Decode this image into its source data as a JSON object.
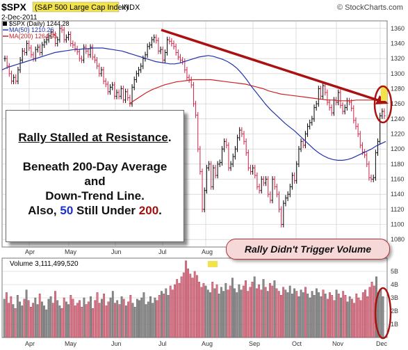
{
  "chart_data": {
    "type": "candlestick",
    "title": "$SPX",
    "title_detail": "(S&P 500 Large Cap Index)",
    "exchange": "INDX",
    "date": "2-Dec-2011",
    "source": "© StockCharts.com",
    "legend": [
      {
        "name": "$SPX (Daily) 1244.28",
        "color": "#000000"
      },
      {
        "name": "MA(50) 1210.26",
        "color": "#2233aa"
      },
      {
        "name": "MA(200) 1264.95",
        "color": "#cc2222"
      }
    ],
    "price_axis": {
      "ylim": [
        1070,
        1370
      ],
      "ticks": [
        1080,
        1100,
        1120,
        1140,
        1160,
        1180,
        1200,
        1220,
        1240,
        1260,
        1280,
        1300,
        1320,
        1340,
        1360
      ]
    },
    "volume_axis": {
      "label": "Volume 3,111,499,520",
      "ticks": [
        "1B",
        "2B",
        "3B",
        "4B",
        "5B"
      ],
      "ylim": [
        0,
        6
      ]
    },
    "x_labels": [
      "Apr",
      "May",
      "Jun",
      "Jul",
      "Aug",
      "Sep",
      "Oct",
      "Nov",
      "Dec"
    ],
    "close_series": [
      1320,
      1310,
      1300,
      1290,
      1295,
      1290,
      1305,
      1318,
      1330,
      1328,
      1340,
      1334,
      1325,
      1320,
      1332,
      1335,
      1328,
      1338,
      1342,
      1345,
      1350,
      1355,
      1352,
      1340,
      1345,
      1360,
      1358,
      1345,
      1348,
      1352,
      1340,
      1338,
      1333,
      1329,
      1320,
      1318,
      1335,
      1330,
      1325,
      1335,
      1322,
      1318,
      1310,
      1300,
      1305,
      1290,
      1286,
      1276,
      1282,
      1285,
      1270,
      1275,
      1270,
      1280,
      1265,
      1276,
      1268,
      1260,
      1282,
      1292,
      1300,
      1305,
      1310,
      1320,
      1325,
      1336,
      1338,
      1345,
      1348,
      1344,
      1330,
      1332,
      1318,
      1328,
      1345,
      1343,
      1340,
      1336,
      1328,
      1322,
      1318,
      1316,
      1305,
      1295,
      1292,
      1285,
      1260,
      1245,
      1200,
      1170,
      1120,
      1145,
      1175,
      1180,
      1150,
      1175,
      1165,
      1180,
      1182,
      1200,
      1210,
      1205,
      1175,
      1180,
      1190,
      1200,
      1215,
      1225,
      1220,
      1210,
      1195,
      1175,
      1170,
      1175,
      1165,
      1150,
      1145,
      1160,
      1155,
      1160,
      1140,
      1132,
      1160,
      1150,
      1140,
      1120,
      1100,
      1128,
      1135,
      1140,
      1150,
      1165,
      1158,
      1180,
      1200,
      1210,
      1205,
      1220,
      1230,
      1235,
      1240,
      1255,
      1260,
      1280,
      1270,
      1284,
      1275,
      1262,
      1255,
      1248,
      1265,
      1262,
      1275,
      1258,
      1250,
      1255,
      1264,
      1262,
      1254,
      1238,
      1230,
      1220,
      1205,
      1196,
      1192,
      1180,
      1162,
      1160,
      1162,
      1195,
      1210,
      1244,
      1250,
      1244
    ],
    "ma50": [
      1305,
      1308,
      1310,
      1312,
      1314,
      1316,
      1318,
      1320,
      1322,
      1324,
      1326,
      1328,
      1329,
      1330,
      1331,
      1332,
      1332,
      1333,
      1333,
      1334,
      1334,
      1334,
      1333,
      1332,
      1331,
      1330,
      1328,
      1326,
      1324,
      1322,
      1320,
      1318,
      1316,
      1315,
      1314,
      1313,
      1313,
      1314,
      1316,
      1318,
      1320,
      1322,
      1323,
      1324,
      1323,
      1321,
      1319,
      1316,
      1312,
      1307,
      1300,
      1292,
      1283,
      1275,
      1267,
      1259,
      1252,
      1246,
      1240,
      1234,
      1229,
      1224,
      1218,
      1212,
      1206,
      1200,
      1195,
      1191,
      1188,
      1186,
      1185,
      1185,
      1186,
      1188,
      1191,
      1194,
      1197,
      1200,
      1204,
      1207,
      1210
    ],
    "ma200": [
      1260,
      1265,
      1270,
      1275,
      1279,
      1282,
      1285,
      1287,
      1289,
      1290,
      1291,
      1292,
      1292,
      1292,
      1292,
      1291,
      1290,
      1289,
      1288,
      1287,
      1286,
      1284,
      1282,
      1280,
      1277,
      1275,
      1273,
      1272,
      1271,
      1270,
      1269,
      1268,
      1267,
      1266,
      1265,
      1265,
      1264,
      1264,
      1264,
      1265,
      1265,
      1265,
      1265,
      1265,
      1265
    ],
    "volume_series": [
      2.9,
      3.4,
      2.6,
      3.1,
      2.5,
      2.2,
      3.2,
      2.7,
      2.4,
      2.9,
      3.6,
      2.8,
      2.3,
      2.6,
      3.0,
      2.5,
      3.3,
      2.7,
      2.4,
      2.1,
      2.9,
      3.1,
      2.6,
      3.5,
      2.8,
      2.4,
      2.2,
      3.0,
      2.7,
      2.5,
      3.2,
      2.9,
      2.4,
      2.6,
      2.8,
      2.3,
      3.0,
      2.5,
      2.7,
      3.1,
      2.2,
      2.8,
      3.4,
      2.6,
      2.9,
      3.3,
      2.4,
      2.7,
      3.0,
      3.5,
      2.6,
      2.8,
      2.5,
      3.1,
      2.9,
      2.4,
      2.7,
      3.2,
      2.6,
      2.3,
      2.9,
      2.8,
      3.0,
      3.4,
      2.5,
      2.7,
      3.1,
      2.6,
      3.0,
      2.8,
      3.2,
      3.5,
      3.3,
      3.7,
      3.2,
      3.9,
      3.6,
      4.0,
      4.4,
      4.1,
      4.6,
      4.9,
      5.8,
      5.2,
      4.8,
      4.5,
      5.0,
      4.7,
      4.2,
      3.8,
      4.1,
      3.9,
      3.6,
      3.4,
      4.2,
      3.7,
      4.0,
      3.3,
      3.8,
      3.5,
      4.1,
      3.6,
      3.9,
      4.5,
      3.7,
      3.4,
      4.0,
      3.6,
      3.9,
      4.3,
      3.5,
      3.8,
      4.2,
      4.6,
      3.7,
      4.0,
      3.6,
      4.4,
      3.8,
      3.5,
      4.1,
      3.9,
      4.3,
      3.7,
      3.5,
      3.2,
      3.8,
      3.6,
      3.4,
      3.9,
      3.3,
      3.7,
      3.5,
      3.1,
      3.6,
      3.4,
      3.8,
      3.3,
      3.0,
      3.5,
      3.2,
      3.7,
      3.4,
      3.1,
      3.6,
      3.3,
      2.9,
      3.4,
      3.2,
      2.8,
      3.6,
      3.3,
      3.0,
      3.5,
      3.2,
      2.7,
      3.1,
      2.9,
      2.6,
      3.3,
      3.0,
      2.8,
      3.4,
      3.6,
      3.1,
      3.8,
      4.2,
      3.9,
      4.6,
      3.4,
      3.6,
      3.1
    ],
    "annotations": {
      "callout_title": "Rally Stalled at Resistance",
      "callout_period": ".",
      "callout_line2": "Beneath 200-Day Average",
      "callout_line3": "and",
      "callout_line4": "Down-Trend Line.",
      "callout_line5_pre": "Also, ",
      "callout_line5_a": "50",
      "callout_line5_mid": " Still Under ",
      "callout_line5_b": "200",
      "callout_line5_post": ".",
      "volume_callout": "Rally Didn't Trigger Volume"
    },
    "colors": {
      "up": "#000000",
      "down": "#cc2244",
      "ma50": "#2233aa",
      "ma200": "#cc2222",
      "trendline": "#aa1111",
      "grid": "#c8c8c8",
      "highlight": "#f2e34a"
    }
  }
}
